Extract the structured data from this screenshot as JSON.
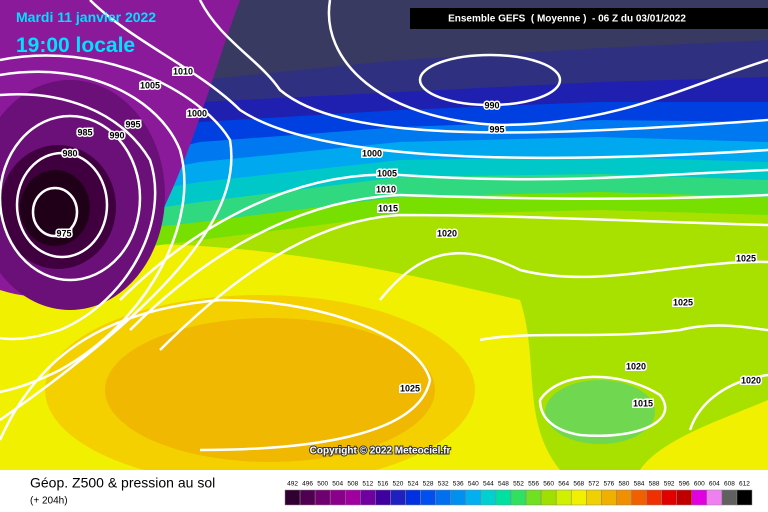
{
  "header": {
    "date": "Mardi 11 janvier 2022",
    "time": "19:00 locale",
    "source": "Ensemble GEFS  ( Moyenne )  - 06 Z du 03/01/2022"
  },
  "isobar_labels": [
    1010,
    1005,
    1000,
    995,
    990,
    985,
    980,
    975,
    990,
    995,
    1000,
    1005,
    1010,
    1015,
    1020,
    1025,
    1025,
    1020,
    1015,
    1020,
    1025
  ],
  "copyright": "Copyright © 2022 Meteociel.fr",
  "legend": {
    "title": "Géop. Z500 & pression au sol",
    "subtitle": "(+ 204h)",
    "scale": [
      492,
      496,
      500,
      504,
      508,
      512,
      516,
      520,
      524,
      528,
      532,
      536,
      540,
      544,
      548,
      552,
      556,
      560,
      564,
      568,
      572,
      576,
      580,
      584,
      588,
      592,
      596,
      600,
      604,
      608,
      612
    ]
  }
}
